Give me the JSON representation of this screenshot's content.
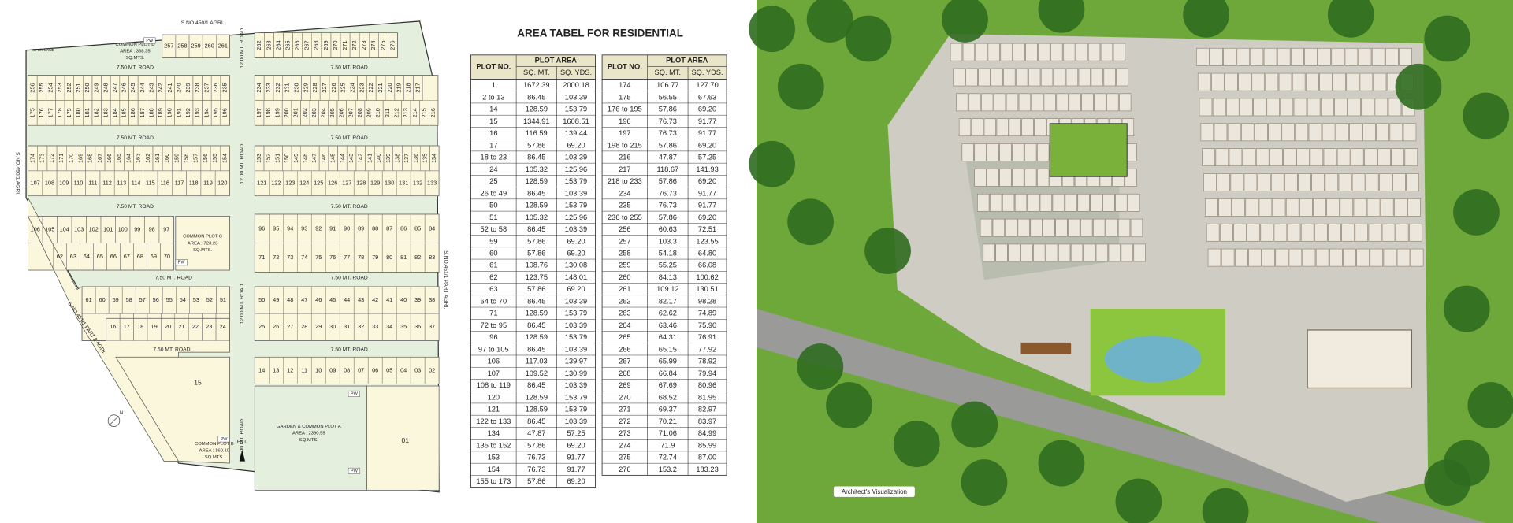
{
  "site_plan": {
    "boundary_labels": [
      "S.NO.450/1 AGRI.",
      "S.NO.450/1 AGRI.",
      "S.NO.451/1 PART AGRI.",
      "S.NO.451/1 PART 2 AGRI."
    ],
    "road_labels": [
      "7.50 MT. ROAD",
      "7.50 MT. ROAD",
      "7.50 MT. ROAD",
      "7.50 MT. ROAD",
      "7.50 MT. ROAD",
      "7.50 MT. ROAD",
      "7.50 MT. ROAD",
      "7.50 MT. ROAD",
      "7.50 MT. ROAD",
      "7.50 MT. ROAD",
      "12.00 MT. ROAD",
      "12.00 MT. ROAD",
      "12.00 MT. ROAD",
      "12.00 MT. ROAD"
    ],
    "plot_rows": [
      [
        257,
        258,
        259,
        260,
        261
      ],
      [
        262,
        263,
        264,
        265,
        266,
        267,
        268,
        269,
        270,
        271,
        272,
        273,
        274,
        275,
        276
      ],
      [
        256,
        255,
        254,
        253,
        252,
        251,
        250,
        249,
        248,
        247,
        246,
        245,
        244,
        243,
        242,
        241,
        240,
        239,
        238,
        237,
        236,
        235
      ],
      [
        175,
        176,
        177,
        178,
        179,
        180,
        181,
        182,
        183,
        184,
        185,
        186,
        187,
        188,
        189,
        190,
        191,
        192,
        193,
        194,
        195,
        196
      ],
      [
        234,
        233,
        232,
        231,
        230,
        229,
        228,
        227,
        226,
        225,
        224,
        223,
        222,
        221,
        220,
        219,
        218,
        217
      ],
      [
        197,
        198,
        199,
        200,
        201,
        202,
        203,
        204,
        205,
        206,
        207,
        208,
        209,
        210,
        211,
        212,
        213,
        214,
        215,
        216
      ],
      [
        174,
        173,
        172,
        171,
        170,
        169,
        168,
        167,
        166,
        165,
        164,
        163,
        162,
        161,
        160,
        159,
        158,
        157,
        156,
        155,
        154
      ],
      [
        107,
        108,
        109,
        110,
        111,
        112,
        113,
        114,
        115,
        116,
        117,
        118,
        119,
        120
      ],
      [
        153,
        152,
        151,
        150,
        149,
        148,
        147,
        146,
        145,
        144,
        143,
        142,
        141,
        140,
        139,
        138,
        137,
        136,
        135,
        134
      ],
      [
        121,
        122,
        123,
        124,
        125,
        126,
        127,
        128,
        129,
        130,
        131,
        132,
        133
      ],
      [
        106,
        105,
        104,
        103,
        102,
        101,
        100,
        99,
        98,
        97
      ],
      [
        62,
        63,
        64,
        65,
        66,
        67,
        68,
        69,
        70
      ],
      [
        96,
        95,
        94,
        93,
        92,
        91,
        90,
        89,
        88,
        87,
        86,
        85,
        84
      ],
      [
        71,
        72,
        73,
        74,
        75,
        76,
        77,
        78,
        79,
        80,
        81,
        82,
        83
      ],
      [
        61,
        60,
        59,
        58,
        57,
        56,
        55,
        54,
        53,
        52,
        51
      ],
      [
        16,
        17,
        18,
        19,
        20,
        21,
        22,
        23,
        24
      ],
      [
        50,
        49,
        48,
        47,
        46,
        45,
        44,
        43,
        42,
        41,
        40,
        39,
        38
      ],
      [
        25,
        26,
        27,
        28,
        29,
        30,
        31,
        32,
        33,
        34,
        35,
        36,
        37
      ],
      [
        14,
        13,
        12,
        11,
        10,
        "09",
        "08",
        "07",
        "06",
        "05",
        "04",
        "03",
        "02"
      ]
    ],
    "single_plots": [
      "15",
      "01"
    ],
    "common_plots": [
      [
        "COMMON PLOT D",
        "AREA : 368.35",
        "SQ.MTS."
      ],
      [
        "COMMON PLOT C",
        "AREA : 723.23",
        "SQ.MTS."
      ],
      [
        "GARDEN & COMMON PLOT A",
        "AREA : 2390.55",
        "SQ.MTS."
      ],
      [
        "COMMON PLOT B",
        "AREA : 160.10",
        "SQ.MTS."
      ]
    ],
    "open_land": "OPEN LAND",
    "pw": "PW",
    "entry": "ENT.",
    "north": "N"
  },
  "area_table": {
    "title": "AREA TABEL FOR RESIDENTIAL",
    "headers": {
      "plot_no": "PLOT NO.",
      "plot_area": "PLOT AREA",
      "sq_mt": "SQ. MT.",
      "sq_yds": "SQ. YDS."
    },
    "left_rows": [
      [
        "1",
        "1672.39",
        "2000.18"
      ],
      [
        "2 to 13",
        "86.45",
        "103.39"
      ],
      [
        "14",
        "128.59",
        "153.79"
      ],
      [
        "15",
        "1344.91",
        "1608.51"
      ],
      [
        "16",
        "116.59",
        "139.44"
      ],
      [
        "17",
        "57.86",
        "69.20"
      ],
      [
        "18 to 23",
        "86.45",
        "103.39"
      ],
      [
        "24",
        "105.32",
        "125.96"
      ],
      [
        "25",
        "128.59",
        "153.79"
      ],
      [
        "26 to 49",
        "86.45",
        "103.39"
      ],
      [
        "50",
        "128.59",
        "153.79"
      ],
      [
        "51",
        "105.32",
        "125.96"
      ],
      [
        "52 to 58",
        "86.45",
        "103.39"
      ],
      [
        "59",
        "57.86",
        "69.20"
      ],
      [
        "60",
        "57.86",
        "69.20"
      ],
      [
        "61",
        "108.76",
        "130.08"
      ],
      [
        "62",
        "123.75",
        "148.01"
      ],
      [
        "63",
        "57.86",
        "69.20"
      ],
      [
        "64 to 70",
        "86.45",
        "103.39"
      ],
      [
        "71",
        "128.59",
        "153.79"
      ],
      [
        "72 to 95",
        "86.45",
        "103.39"
      ],
      [
        "96",
        "128.59",
        "153.79"
      ],
      [
        "97 to 105",
        "86.45",
        "103.39"
      ],
      [
        "106",
        "117.03",
        "139.97"
      ],
      [
        "107",
        "109.52",
        "130.99"
      ],
      [
        "108 to 119",
        "86.45",
        "103.39"
      ],
      [
        "120",
        "128.59",
        "153.79"
      ],
      [
        "121",
        "128.59",
        "153.79"
      ],
      [
        "122 to 133",
        "86.45",
        "103.39"
      ],
      [
        "134",
        "47.87",
        "57.25"
      ],
      [
        "135 to 152",
        "57.86",
        "69.20"
      ],
      [
        "153",
        "76.73",
        "91.77"
      ],
      [
        "154",
        "76.73",
        "91.77"
      ],
      [
        "155 to 173",
        "57.86",
        "69.20"
      ]
    ],
    "right_rows": [
      [
        "174",
        "106.77",
        "127.70"
      ],
      [
        "175",
        "56.55",
        "67.63"
      ],
      [
        "176 to 195",
        "57.86",
        "69.20"
      ],
      [
        "196",
        "76.73",
        "91.77"
      ],
      [
        "197",
        "76.73",
        "91.77"
      ],
      [
        "198 to 215",
        "57.86",
        "69.20"
      ],
      [
        "216",
        "47.87",
        "57.25"
      ],
      [
        "217",
        "118.67",
        "141.93"
      ],
      [
        "218 to 233",
        "57.86",
        "69.20"
      ],
      [
        "234",
        "76.73",
        "91.77"
      ],
      [
        "235",
        "76.73",
        "91.77"
      ],
      [
        "236 to 255",
        "57.86",
        "69.20"
      ],
      [
        "256",
        "60.63",
        "72.51"
      ],
      [
        "257",
        "103.3",
        "123.55"
      ],
      [
        "258",
        "54.18",
        "64.80"
      ],
      [
        "259",
        "55.25",
        "66.08"
      ],
      [
        "260",
        "84.13",
        "100.62"
      ],
      [
        "261",
        "109.12",
        "130.51"
      ],
      [
        "262",
        "82.17",
        "98.28"
      ],
      [
        "263",
        "62.62",
        "74.89"
      ],
      [
        "264",
        "63.46",
        "75.90"
      ],
      [
        "265",
        "64.31",
        "76.91"
      ],
      [
        "266",
        "65.15",
        "77.92"
      ],
      [
        "267",
        "65.99",
        "78.92"
      ],
      [
        "268",
        "66.84",
        "79.94"
      ],
      [
        "269",
        "67.69",
        "80.96"
      ],
      [
        "270",
        "68.52",
        "81.95"
      ],
      [
        "271",
        "69.37",
        "82.97"
      ],
      [
        "272",
        "70.21",
        "83.97"
      ],
      [
        "273",
        "71.06",
        "84.99"
      ],
      [
        "274",
        "71.9",
        "85.99"
      ],
      [
        "275",
        "72.74",
        "87.00"
      ],
      [
        "276",
        "153.2",
        "183.23"
      ]
    ]
  },
  "rendering": {
    "caption": "Architect's Visualization"
  }
}
